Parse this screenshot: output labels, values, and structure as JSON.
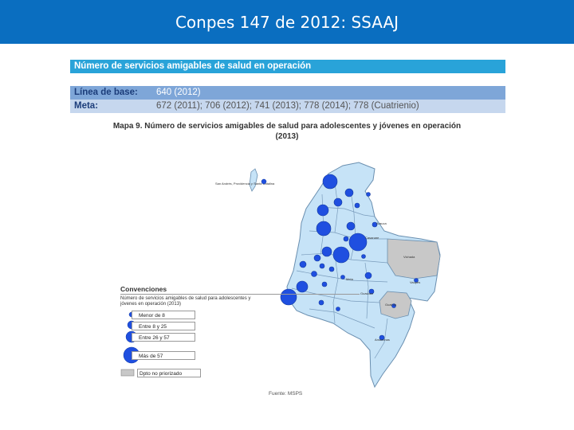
{
  "slide_title": "Conpes 147 de 2012: SSAAJ",
  "indicator": {
    "header": "Número de servicios amigables de salud en operación",
    "baseline_label": "Línea de base:",
    "baseline_value": "640 (2012)",
    "goal_label": "Meta:",
    "goal_value": "672 (2011); 706 (2012); 741 (2013); 778 (2014); 778 (Cuatrienio)"
  },
  "map": {
    "title_line1": "Mapa 9. Número de servicios amigables de salud para adolescentes y jóvenes en operación",
    "title_line2": "(2013)",
    "island_label": "San Andrés, Providencia y Santa Catalina",
    "colors": {
      "department_fill": "#c6e3f7",
      "department_stroke": "#6a8fb0",
      "circle_fill": "#1f4fe0",
      "not_prioritized_fill": "#c8c8c8"
    },
    "place_labels": [
      "Arauca",
      "Vichada",
      "Guainía",
      "Vaupés",
      "Amazonas",
      "Guaviare",
      "Meta",
      "Casanare"
    ]
  },
  "legend": {
    "title": "Convenciones",
    "subtitle": "Número de servicios amigables de salud para adolescentes y jóvenes en operación (2013)",
    "items": [
      {
        "label": "Menor de 8"
      },
      {
        "label": "Entre 8 y 25"
      },
      {
        "label": "Entre 26 y 57"
      },
      {
        "label": "Más de 57"
      },
      {
        "label": "Dpto no priorizado"
      }
    ]
  },
  "source": "Fuente: MSPS"
}
